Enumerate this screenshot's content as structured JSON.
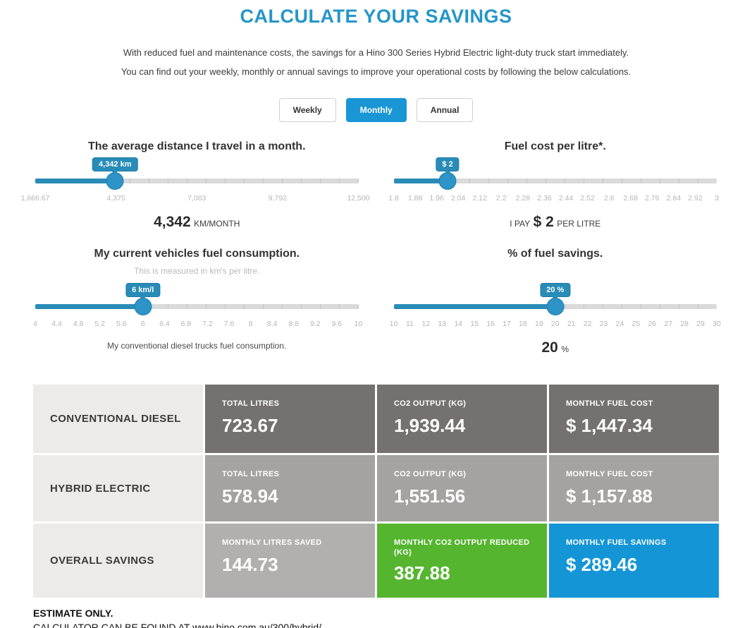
{
  "page": {
    "title": "CALCULATE YOUR SAVINGS",
    "intro_line1": "With reduced fuel and maintenance costs, the savings for a Hino 300 Series Hybrid Electric light-duty truck start immediately.",
    "intro_line2": "You can find out your weekly, monthly or annual savings to improve your operational costs by following the below calculations.",
    "footer_line1": "ESTIMATE ONLY.",
    "footer_line2": "CALCULATOR CAN BE FOUND AT www.hino.com.au/300/hybrid/"
  },
  "colors": {
    "accent_blue": "#1a96d4",
    "title_blue": "#2496c9",
    "slider_fill": "#2a8cb7",
    "row_dark_gray": "#767171",
    "row_mid_gray": "#a5a2a2",
    "row_light_gray": "#b2afaf",
    "savings_green": "#55b52f",
    "savings_blue": "#1496d6",
    "label_col_bg": "#edebe9"
  },
  "tabs": [
    {
      "label": "Weekly",
      "active": false
    },
    {
      "label": "Monthly",
      "active": true
    },
    {
      "label": "Annual",
      "active": false
    }
  ],
  "sliders": [
    {
      "title": "The average distance I travel in a month.",
      "tooltip": "4,342 km",
      "percent": 24.7,
      "ticks": [
        "1,666.67",
        "4,375",
        "7,083",
        "9,792",
        "12,500"
      ],
      "result": {
        "prefix": "",
        "value": "4,342",
        "suffix": "KM/MONTH"
      }
    },
    {
      "title": "Fuel cost per litre*.",
      "tooltip": "$ 2",
      "percent": 16.7,
      "ticks": [
        "1.8",
        "1.88",
        "1.96",
        "2.04",
        "2.12",
        "2.2",
        "2.28",
        "2.36",
        "2.44",
        "2.52",
        "2.6",
        "2.68",
        "2.76",
        "2.84",
        "2.92",
        "3"
      ],
      "result": {
        "prefix": "I PAY",
        "value": "$ 2",
        "suffix": "PER LITRE"
      }
    },
    {
      "title": "My current vehicles fuel consumption.",
      "subtitle": "This is measured in km's per litre.",
      "tooltip": "6 km/l",
      "percent": 33.3,
      "ticks": [
        "4",
        "4.4",
        "4.8",
        "5.2",
        "5.6",
        "6",
        "6.4",
        "6.8",
        "7.2",
        "7.6",
        "8",
        "8.4",
        "8.8",
        "9.2",
        "9.6",
        "10"
      ],
      "caption": "My conventional diesel trucks fuel consumption."
    },
    {
      "title": "% of fuel savings.",
      "subtitle": "",
      "tooltip": "20 %",
      "percent": 50,
      "ticks": [
        "10",
        "11",
        "12",
        "13",
        "14",
        "15",
        "16",
        "17",
        "18",
        "19",
        "20",
        "21",
        "22",
        "23",
        "24",
        "25",
        "26",
        "27",
        "28",
        "29",
        "30"
      ],
      "result": {
        "prefix": "",
        "value": "20",
        "suffix": "%"
      }
    }
  ],
  "table": {
    "rows": [
      {
        "label": "CONVENTIONAL DIESEL",
        "cells": [
          {
            "heading": "TOTAL LITRES",
            "value": "723.67",
            "bg": "#767171"
          },
          {
            "heading": "CO2 OUTPUT (KG)",
            "value": "1,939.44",
            "bg": "#767171"
          },
          {
            "heading": "MONTHLY FUEL COST",
            "value": "$ 1,447.34",
            "bg": "#767171"
          }
        ]
      },
      {
        "label": "HYBRID ELECTRIC",
        "cells": [
          {
            "heading": "TOTAL LITRES",
            "value": "578.94",
            "bg": "#a5a2a2"
          },
          {
            "heading": "CO2 OUTPUT (KG)",
            "value": "1,551.56",
            "bg": "#a5a2a2"
          },
          {
            "heading": "MONTHLY FUEL COST",
            "value": "$ 1,157.88",
            "bg": "#a5a2a2"
          }
        ]
      },
      {
        "label": "OVERALL SAVINGS",
        "cells": [
          {
            "heading": "MONTHLY LITRES SAVED",
            "value": "144.73",
            "bg": "#b2afaf"
          },
          {
            "heading": "MONTHLY CO2 OUTPUT REDUCED (KG)",
            "value": "387.88",
            "bg": "#55b52f"
          },
          {
            "heading": "MONTHLY FUEL SAVINGS",
            "value": "$ 289.46",
            "bg": "#1496d6"
          }
        ]
      }
    ]
  }
}
